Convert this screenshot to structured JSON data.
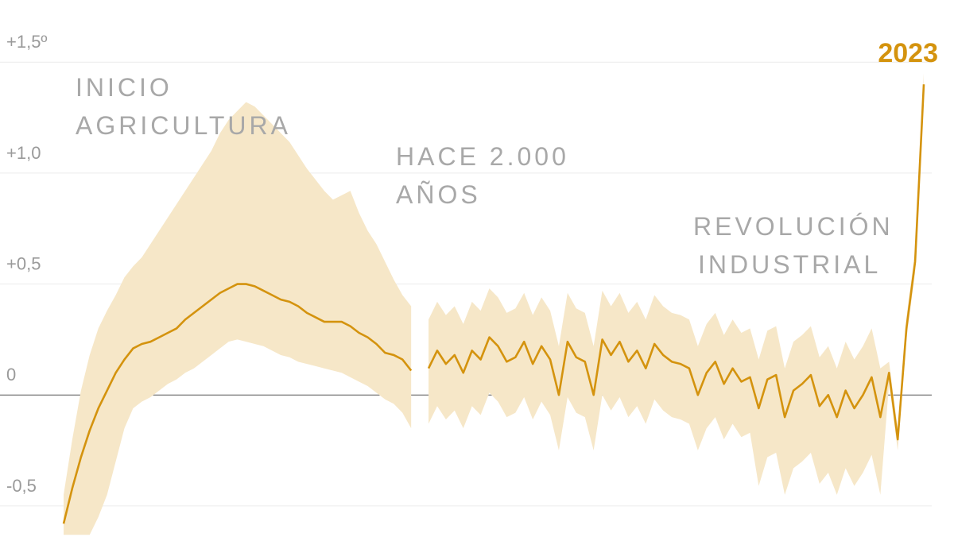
{
  "chart_data": {
    "type": "line",
    "categories": [
      null,
      null,
      null,
      null,
      null,
      null,
      null,
      null,
      null,
      null,
      null,
      null,
      null,
      null,
      null,
      null,
      null,
      null,
      null,
      null,
      null,
      null,
      null,
      null,
      null,
      null,
      null,
      null,
      null,
      null,
      null,
      null,
      null,
      null,
      null,
      null,
      null,
      null,
      null,
      null,
      null,
      null,
      null,
      null,
      null,
      null,
      null,
      null,
      null,
      null,
      null,
      null,
      null,
      null,
      null,
      null,
      null,
      null,
      null,
      null,
      null,
      null,
      null,
      null,
      null,
      null,
      null,
      null,
      null,
      null,
      null,
      null,
      null,
      null,
      null,
      null,
      null,
      null,
      null,
      null,
      null,
      null,
      null,
      null,
      null,
      null,
      null,
      null,
      null,
      null,
      null,
      null,
      null,
      null,
      null,
      null,
      null,
      null,
      null,
      null
    ],
    "series": [
      {
        "color": "#d4930e",
        "values": [
          -0.58,
          -0.42,
          -0.28,
          -0.16,
          -0.06,
          0.02,
          0.1,
          0.16,
          0.21,
          0.23,
          0.24,
          0.26,
          0.28,
          0.3,
          0.34,
          0.37,
          0.4,
          0.43,
          0.46,
          0.48,
          0.5,
          0.5,
          0.49,
          0.47,
          0.45,
          0.43,
          0.42,
          0.4,
          0.37,
          0.35,
          0.33,
          0.33,
          0.33,
          0.31,
          0.28,
          0.26,
          0.23,
          0.19,
          0.18,
          0.16,
          0.11,
          null,
          0.12,
          0.2,
          0.14,
          0.18,
          0.1,
          0.2,
          0.16,
          0.26,
          0.22,
          0.15,
          0.17,
          0.24,
          0.14,
          0.22,
          0.16,
          0.0,
          0.24,
          0.17,
          0.15,
          0.0,
          0.25,
          0.18,
          0.24,
          0.15,
          0.2,
          0.12,
          0.23,
          0.18,
          0.15,
          0.14,
          0.12,
          0.0,
          0.1,
          0.15,
          0.05,
          0.12,
          0.06,
          0.08,
          -0.06,
          0.07,
          0.09,
          -0.1,
          0.02,
          0.05,
          0.09,
          -0.05,
          0.0,
          -0.1,
          0.02,
          -0.06,
          0.0,
          0.08,
          -0.1,
          0.1,
          -0.2,
          0.3,
          0.6,
          1.4
        ]
      }
    ],
    "band": {
      "color": "#f6e7c8",
      "upper": [
        -0.45,
        -0.2,
        0.02,
        0.18,
        0.3,
        0.38,
        0.45,
        0.53,
        0.58,
        0.62,
        0.68,
        0.74,
        0.8,
        0.86,
        0.92,
        0.98,
        1.04,
        1.1,
        1.18,
        1.24,
        1.28,
        1.32,
        1.3,
        1.26,
        1.22,
        1.18,
        1.14,
        1.08,
        1.02,
        0.97,
        0.92,
        0.88,
        0.9,
        0.92,
        0.82,
        0.74,
        0.68,
        0.6,
        0.52,
        0.45,
        0.4,
        null,
        0.34,
        0.42,
        0.36,
        0.4,
        0.32,
        0.42,
        0.38,
        0.48,
        0.44,
        0.37,
        0.39,
        0.46,
        0.36,
        0.44,
        0.38,
        0.22,
        0.46,
        0.39,
        0.37,
        0.22,
        0.47,
        0.4,
        0.46,
        0.37,
        0.42,
        0.34,
        0.45,
        0.4,
        0.37,
        0.36,
        0.34,
        0.22,
        0.32,
        0.37,
        0.27,
        0.34,
        0.28,
        0.3,
        0.16,
        0.29,
        0.31,
        0.12,
        0.24,
        0.27,
        0.31,
        0.17,
        0.22,
        0.12,
        0.24,
        0.16,
        0.22,
        0.3,
        0.12,
        0.15,
        -0.15,
        0.35,
        0.65,
        1.45
      ],
      "lower": [
        -0.63,
        -0.63,
        -0.63,
        -0.63,
        -0.55,
        -0.45,
        -0.3,
        -0.15,
        -0.06,
        -0.03,
        -0.01,
        0.02,
        0.05,
        0.07,
        0.1,
        0.12,
        0.15,
        0.18,
        0.21,
        0.24,
        0.25,
        0.24,
        0.23,
        0.22,
        0.2,
        0.18,
        0.17,
        0.15,
        0.14,
        0.13,
        0.12,
        0.11,
        0.1,
        0.08,
        0.06,
        0.04,
        0.01,
        -0.02,
        -0.04,
        -0.08,
        -0.15,
        null,
        -0.13,
        -0.05,
        -0.11,
        -0.07,
        -0.15,
        -0.05,
        -0.09,
        0.01,
        -0.03,
        -0.1,
        -0.08,
        -0.01,
        -0.11,
        -0.03,
        -0.09,
        -0.25,
        -0.01,
        -0.08,
        -0.1,
        -0.25,
        0.0,
        -0.07,
        -0.01,
        -0.1,
        -0.05,
        -0.13,
        -0.02,
        -0.07,
        -0.1,
        -0.11,
        -0.13,
        -0.25,
        -0.15,
        -0.1,
        -0.2,
        -0.13,
        -0.19,
        -0.17,
        -0.41,
        -0.28,
        -0.26,
        -0.45,
        -0.33,
        -0.3,
        -0.26,
        -0.4,
        -0.35,
        -0.45,
        -0.33,
        -0.41,
        -0.35,
        -0.27,
        -0.45,
        0.05,
        -0.25,
        0.25,
        0.55,
        1.35
      ]
    },
    "ylim": [
      -0.64,
      1.78
    ],
    "yticks": [
      {
        "value": -0.5,
        "label": "-0,5"
      },
      0,
      {
        "value": 0.5,
        "label": "+0,5"
      },
      {
        "value": 1,
        "label": "+1,0"
      },
      {
        "value": 1.5,
        "label": "+1,5º"
      }
    ],
    "grid": true,
    "end_label": "2023",
    "annotations": [
      {
        "lines": [
          "INICIO",
          "AGRICULTURA"
        ]
      },
      {
        "lines": [
          "HACE 2.000",
          "AÑOS"
        ]
      },
      {
        "lines": [
          "REVOLUCIÓN",
          "INDUSTRIAL"
        ]
      }
    ]
  }
}
